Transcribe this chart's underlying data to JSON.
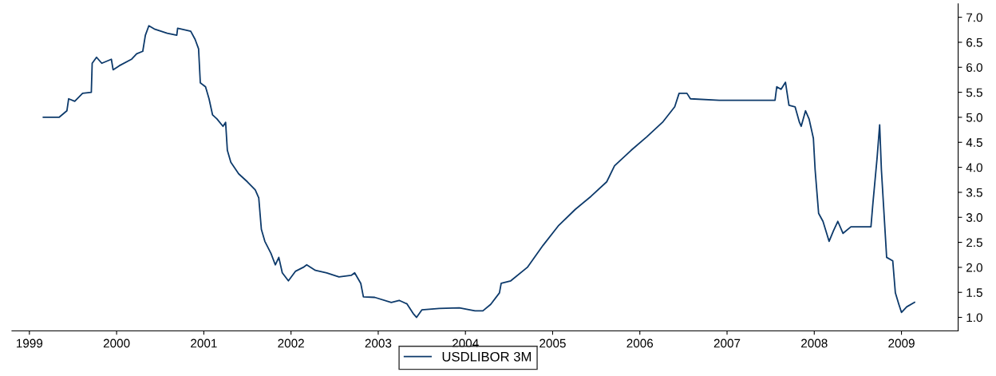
{
  "chart_data": {
    "type": "line",
    "x": [
      1999.16,
      1999.34,
      1999.43,
      1999.45,
      1999.52,
      1999.61,
      1999.71,
      1999.72,
      1999.77,
      1999.83,
      1999.94,
      1999.96,
      2000.03,
      2000.17,
      2000.23,
      2000.3,
      2000.33,
      2000.37,
      2000.44,
      2000.58,
      2000.69,
      2000.7,
      2000.85,
      2000.9,
      2000.94,
      2000.96,
      2001.02,
      2001.06,
      2001.1,
      2001.15,
      2001.22,
      2001.25,
      2001.27,
      2001.31,
      2001.4,
      2001.5,
      2001.59,
      2001.63,
      2001.66,
      2001.7,
      2001.77,
      2001.82,
      2001.86,
      2001.9,
      2001.97,
      2002.05,
      2002.14,
      2002.18,
      2002.28,
      2002.41,
      2002.55,
      2002.69,
      2002.73,
      2002.8,
      2002.83,
      2002.96,
      2003.15,
      2003.24,
      2003.33,
      2003.4,
      2003.44,
      2003.5,
      2003.7,
      2003.93,
      2004.11,
      2004.2,
      2004.29,
      2004.39,
      2004.41,
      2004.52,
      2004.71,
      2004.89,
      2005.07,
      2005.26,
      2005.44,
      2005.62,
      2005.71,
      2005.9,
      2006.08,
      2006.26,
      2006.4,
      2006.45,
      2006.54,
      2006.58,
      2006.91,
      2007.37,
      2007.55,
      2007.57,
      2007.62,
      2007.67,
      2007.71,
      2007.78,
      2007.83,
      2007.85,
      2007.9,
      2007.94,
      2007.99,
      2008.01,
      2008.05,
      2008.1,
      2008.17,
      2008.22,
      2008.27,
      2008.33,
      2008.42,
      2008.65,
      2008.67,
      2008.72,
      2008.75,
      2008.77,
      2008.83,
      2008.9,
      2008.93,
      2008.97,
      2009.0,
      2009.06,
      2009.15
    ],
    "series": [
      {
        "name": "USDLIBOR 3M",
        "color": "#0d3a6b",
        "values": [
          5.0,
          5.0,
          5.13,
          5.37,
          5.32,
          5.48,
          5.5,
          6.08,
          6.2,
          6.08,
          6.16,
          5.95,
          6.03,
          6.16,
          6.27,
          6.32,
          6.64,
          6.83,
          6.76,
          6.68,
          6.64,
          6.78,
          6.72,
          6.56,
          6.37,
          5.69,
          5.61,
          5.37,
          5.05,
          4.97,
          4.82,
          4.9,
          4.34,
          4.1,
          3.87,
          3.71,
          3.55,
          3.39,
          2.76,
          2.52,
          2.28,
          2.05,
          2.2,
          1.89,
          1.73,
          1.92,
          2.0,
          2.05,
          1.94,
          1.89,
          1.81,
          1.84,
          1.89,
          1.68,
          1.41,
          1.4,
          1.3,
          1.34,
          1.27,
          1.08,
          1.0,
          1.15,
          1.18,
          1.19,
          1.13,
          1.13,
          1.26,
          1.49,
          1.68,
          1.73,
          2.0,
          2.44,
          2.84,
          3.16,
          3.42,
          3.71,
          4.03,
          4.34,
          4.61,
          4.9,
          5.21,
          5.48,
          5.48,
          5.37,
          5.34,
          5.34,
          5.34,
          5.61,
          5.56,
          5.7,
          5.24,
          5.21,
          4.9,
          4.82,
          5.13,
          4.97,
          4.58,
          3.95,
          3.08,
          2.92,
          2.52,
          2.73,
          2.92,
          2.68,
          2.81,
          2.81,
          3.23,
          4.18,
          4.85,
          3.95,
          2.2,
          2.13,
          1.49,
          1.26,
          1.1,
          1.21,
          1.3
        ]
      }
    ],
    "xlim": [
      1998.8,
      2009.65
    ],
    "xticks": [
      1999,
      2000,
      2001,
      2002,
      2003,
      2004,
      2005,
      2006,
      2007,
      2008,
      2009
    ],
    "ylim": [
      0.73,
      7.27
    ],
    "yticks": [
      {
        "value": 1,
        "label": "1.0"
      },
      {
        "value": 1.5,
        "label": "1.5"
      },
      {
        "value": 2,
        "label": "2.0"
      },
      {
        "value": 2.5,
        "label": "2.5"
      },
      {
        "value": 3,
        "label": "3.0"
      },
      {
        "value": 3.5,
        "label": "3.5"
      },
      {
        "value": 4,
        "label": "4.0"
      },
      {
        "value": 4.5,
        "label": "4.5"
      },
      {
        "value": 5,
        "label": "5.0"
      },
      {
        "value": 5.5,
        "label": "5.5"
      },
      {
        "value": 6,
        "label": "6.0"
      },
      {
        "value": 6.5,
        "label": "6.5"
      },
      {
        "value": 7,
        "label": "7.0"
      }
    ],
    "grid": false,
    "legend": "bottom",
    "marker": "none",
    "line_style": "solid"
  }
}
